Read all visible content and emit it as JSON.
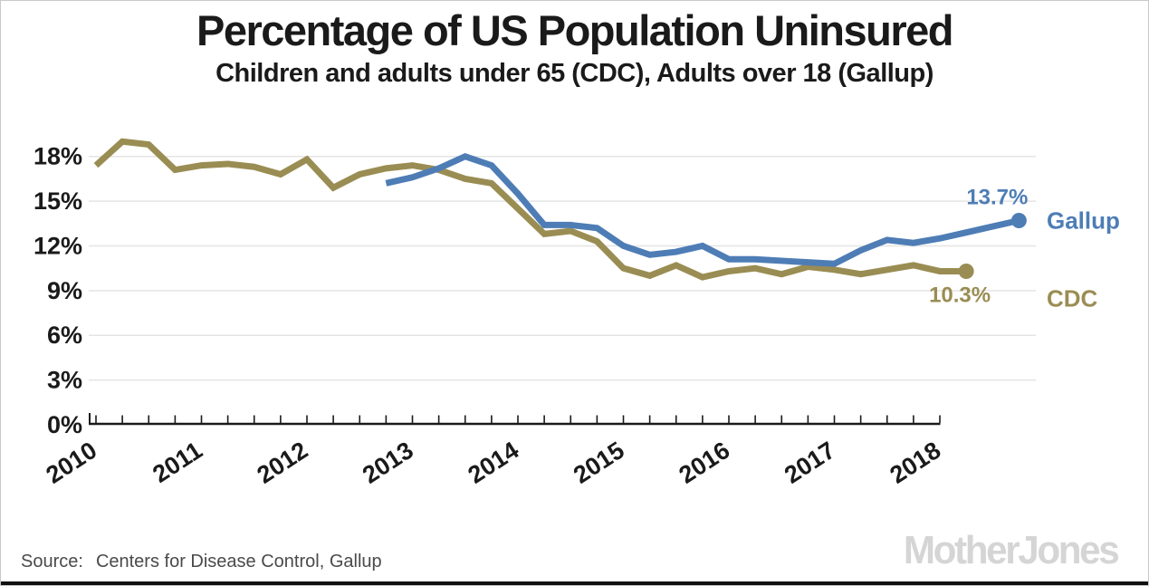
{
  "title": "Percentage of US Population Uninsured",
  "subtitle": "Children and adults under 65 (CDC), Adults over 18 (Gallup)",
  "footer": {
    "source_label": "Source:",
    "source_text": "Centers for Disease Control, Gallup",
    "logo": "MotherJones"
  },
  "chart_data": {
    "type": "line",
    "title": "Percentage of US Population Uninsured",
    "subtitle": "Children and adults under 65 (CDC), Adults over 18 (Gallup)",
    "xlabel": "",
    "ylabel": "",
    "ylim": [
      0,
      19.5
    ],
    "grid": "horizontal",
    "legend_position": "right-of-line-ends",
    "y_ticks": [
      {
        "value": 0,
        "label": "0%"
      },
      {
        "value": 3,
        "label": "3%"
      },
      {
        "value": 6,
        "label": "6%"
      },
      {
        "value": 9,
        "label": "9%"
      },
      {
        "value": 12,
        "label": "12%"
      },
      {
        "value": 15,
        "label": "15%"
      },
      {
        "value": 18,
        "label": "18%"
      }
    ],
    "x_axis": {
      "unit": "quarter",
      "year_labels": [
        "2010",
        "2011",
        "2012",
        "2013",
        "2014",
        "2015",
        "2016",
        "2017",
        "2018"
      ],
      "ticks_per_year": 4
    },
    "series": [
      {
        "name": "CDC",
        "color": "#9a8d53",
        "start_quarter": "2010 Q1",
        "start_offset_quarters": 0,
        "end_label": "10.3%",
        "values": [
          17.4,
          19.0,
          18.8,
          17.1,
          17.4,
          17.5,
          17.3,
          16.8,
          17.8,
          15.9,
          16.8,
          17.2,
          17.4,
          17.1,
          16.5,
          16.2,
          14.5,
          12.8,
          13.0,
          12.3,
          10.5,
          10.0,
          10.7,
          9.9,
          10.3,
          10.5,
          10.1,
          10.6,
          10.4,
          10.1,
          10.4,
          10.7,
          10.3,
          10.3
        ]
      },
      {
        "name": "Gallup",
        "color": "#4e7db6",
        "start_quarter": "2012 Q4",
        "start_offset_quarters": 11,
        "end_label": "13.7%",
        "values": [
          16.2,
          16.6,
          17.2,
          18.0,
          17.4,
          15.5,
          13.4,
          13.4,
          13.2,
          12.0,
          11.4,
          11.6,
          12.0,
          11.1,
          11.1,
          11.0,
          10.9,
          10.8,
          11.7,
          12.4,
          12.2,
          12.5,
          12.9,
          13.3,
          13.7
        ]
      }
    ]
  }
}
